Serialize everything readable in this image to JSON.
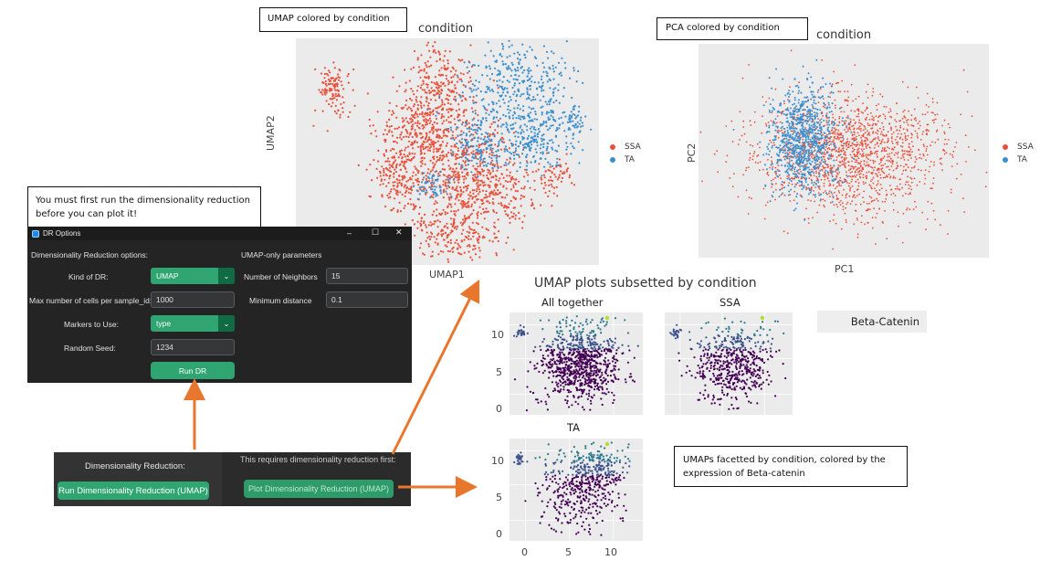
{
  "callouts": {
    "umap_label": "UMAP colored by condition",
    "pca_label": "PCA colored by condition",
    "must_run": "You must first run the dimensionality reduction before you can plot it!",
    "faceted_line1": "UMAPs facetted by condition, colored by the",
    "faceted_line2": "expression of Beta-catenin"
  },
  "umap_plot": {
    "title": "condition",
    "xlabel": "UMAP1",
    "ylabel": "UMAP2",
    "legend": [
      {
        "label": "SSA",
        "color": "#e8503a"
      },
      {
        "label": "TA",
        "color": "#3a8fce"
      }
    ]
  },
  "pca_plot": {
    "title": "condition",
    "xlabel": "PC1",
    "ylabel": "PC2",
    "legend": [
      {
        "label": "SSA",
        "color": "#e8503a"
      },
      {
        "label": "TA",
        "color": "#3a8fce"
      }
    ]
  },
  "dr_window": {
    "title": "DR Options",
    "controls": {
      "minimize": "–",
      "maximize": "☐",
      "close": "✕"
    },
    "section_left": "Dimensionality Reduction options:",
    "section_right": "UMAP-only parameters",
    "kind_label": "Kind of DR:",
    "kind_value": "UMAP",
    "max_cells_label": "Max number of cells per sample_id:",
    "max_cells_value": "1000",
    "markers_label": "Markers to Use:",
    "markers_value": "type",
    "seed_label": "Random Seed:",
    "seed_value": "1234",
    "run_button": "Run DR",
    "neighbors_label": "Number of Neighbors",
    "neighbors_value": "15",
    "min_dist_label": "Minimum distance",
    "min_dist_value": "0.1"
  },
  "main_panel": {
    "dr_label": "Dimensionality Reduction:",
    "run_button": "Run Dimensionality Reduction (UMAP)",
    "requires_note": "This requires dimensionality reduction first:",
    "plot_button": "Plot Dimensionality Reduction (UMAP)"
  },
  "facet_plot": {
    "title": "UMAP plots subsetted by condition",
    "facets": [
      "All together",
      "SSA",
      "TA"
    ],
    "y_ticks": [
      "10",
      "5",
      "0"
    ],
    "x_ticks": [
      "0",
      "5",
      "10"
    ],
    "marker_box": "Beta-Catenin"
  },
  "colors": {
    "ssa": "#e8503a",
    "ta": "#3a8fce",
    "accent_green": "#2fa572",
    "arrow_orange": "#e8762c",
    "panel_gray": "#ebebeb"
  }
}
